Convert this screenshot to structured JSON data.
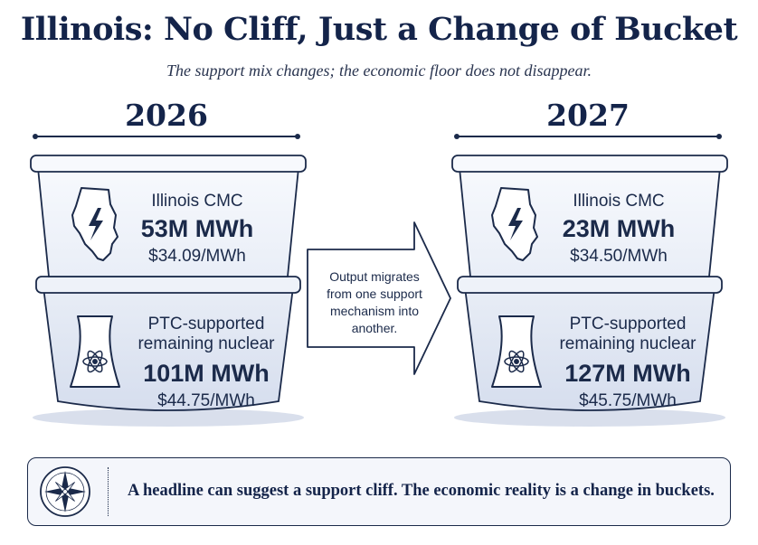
{
  "title": "Illinois: No Cliff, Just a Change of Bucket",
  "subtitle": "The support mix changes; the economic floor does not disappear.",
  "years": [
    {
      "year": "2026",
      "cmc": {
        "label": "Illinois CMC",
        "volume": "53M MWh",
        "price": "$34.09/MWh"
      },
      "ptc": {
        "label_line1": "PTC-supported",
        "label_line2": "remaining nuclear",
        "volume": "101M MWh",
        "price": "$44.75/MWh"
      }
    },
    {
      "year": "2027",
      "cmc": {
        "label": "Illinois CMC",
        "volume": "23M MWh",
        "price": "$34.50/MWh"
      },
      "ptc": {
        "label_line1": "PTC-supported",
        "label_line2": "remaining nuclear",
        "volume": "127M MWh",
        "price": "$45.75/MWh"
      }
    }
  ],
  "arrow": {
    "line1": "Output migrates",
    "line2": "from one support",
    "line3": "mechanism into",
    "line4": "another."
  },
  "callout": {
    "text": "A headline can suggest a support cliff. The economic reality is a change in buckets."
  },
  "icons": {
    "state": "illinois-lightning-icon",
    "plant": "cooling-tower-atom-icon",
    "compass": "compass-rose-icon"
  },
  "colors": {
    "navy": "#14244a",
    "bucket_top": "#f2f5fb",
    "bucket_bottom": "#dfe6f3"
  }
}
